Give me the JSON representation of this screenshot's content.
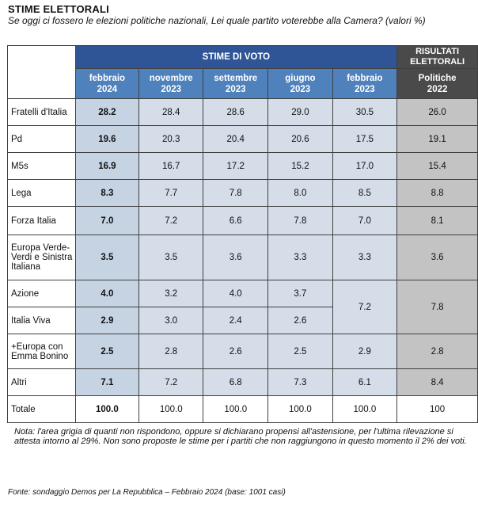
{
  "title": "STIME ELETTORALI",
  "subtitle": "Se oggi ci fossero le elezioni politiche nazionali, Lei quale partito voterebbe alla Camera? (valori %)",
  "header": {
    "group_label": "STIME DI VOTO",
    "results_label": "RISULTATI ELETTORALI",
    "columns": [
      {
        "l1": "febbraio",
        "l2": "2024"
      },
      {
        "l1": "novembre",
        "l2": "2023"
      },
      {
        "l1": "settembre",
        "l2": "2023"
      },
      {
        "l1": "giugno",
        "l2": "2023"
      },
      {
        "l1": "febbraio",
        "l2": "2023"
      },
      {
        "l1": "Politiche",
        "l2": "2022"
      }
    ]
  },
  "chart_data": {
    "type": "table",
    "title": "STIME ELETTORALI",
    "columns": [
      "febbraio 2024",
      "novembre 2023",
      "settembre 2023",
      "giugno 2023",
      "febbraio 2023",
      "Politiche 2022"
    ],
    "rows": [
      {
        "party": "Fratelli d'Italia",
        "values": [
          "28.2",
          "28.4",
          "28.6",
          "29.0",
          "30.5",
          "26.0"
        ]
      },
      {
        "party": "Pd",
        "values": [
          "19.6",
          "20.3",
          "20.4",
          "20.6",
          "17.5",
          "19.1"
        ]
      },
      {
        "party": "M5s",
        "values": [
          "16.9",
          "16.7",
          "17.2",
          "15.2",
          "17.0",
          "15.4"
        ]
      },
      {
        "party": "Lega",
        "values": [
          "8.3",
          "7.7",
          "7.8",
          "8.0",
          "8.5",
          "8.8"
        ]
      },
      {
        "party": "Forza Italia",
        "values": [
          "7.0",
          "7.2",
          "6.6",
          "7.8",
          "7.0",
          "8.1"
        ]
      },
      {
        "party": "Europa Verde-Verdi e Sinistra Italiana",
        "values": [
          "3.5",
          "3.5",
          "3.6",
          "3.3",
          "3.3",
          "3.6"
        ]
      },
      {
        "party": "Azione",
        "values": [
          "4.0",
          "3.2",
          "4.0",
          "3.7"
        ]
      },
      {
        "party": "Italia Viva",
        "values": [
          "2.9",
          "3.0",
          "2.4",
          "2.6"
        ]
      },
      {
        "party": "+Europa con Emma Bonino",
        "values": [
          "2.5",
          "2.8",
          "2.6",
          "2.5",
          "2.9",
          "2.8"
        ]
      },
      {
        "party": "Altri",
        "values": [
          "7.1",
          "7.2",
          "6.8",
          "7.3",
          "6.1",
          "8.4"
        ]
      },
      {
        "party": "Totale",
        "values": [
          "100.0",
          "100.0",
          "100.0",
          "100.0",
          "100.0",
          "100"
        ]
      }
    ],
    "merged": {
      "azione_italia_viva": [
        "7.2",
        "7.8"
      ]
    }
  },
  "note": "Nota: l'area grigia di quanti non rispondono, oppure si dichiarano propensi all'astensione, per l'ultima rilevazione si attesta intorno al 29%. Non sono proposte le stime per i partiti che non raggiungono in questo momento il 2% dei voti.",
  "source": "Fonte: sondaggio Demos per La Repubblica – Febbraio 2024 (base: 1001 casi)"
}
